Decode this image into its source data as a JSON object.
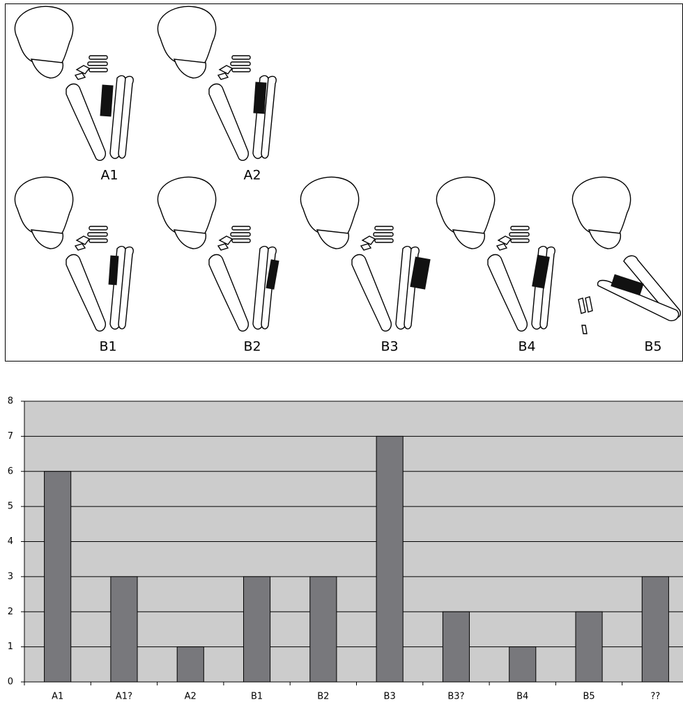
{
  "diagram": {
    "labels": [
      "A1",
      "A2",
      "B1",
      "B2",
      "B3",
      "B4",
      "B5"
    ]
  },
  "chart_data": {
    "type": "bar",
    "categories": [
      "A1",
      "A1?",
      "A2",
      "B1",
      "B2",
      "B3",
      "B3?",
      "B4",
      "B5",
      "??"
    ],
    "values": [
      6,
      3,
      1,
      3,
      3,
      7,
      2,
      1,
      2,
      3
    ],
    "color": "#78787c",
    "background": "#cccccc",
    "ylim": [
      0,
      8
    ],
    "yticks": [
      0,
      1,
      2,
      3,
      4,
      5,
      6,
      7,
      8
    ],
    "grid": true
  }
}
